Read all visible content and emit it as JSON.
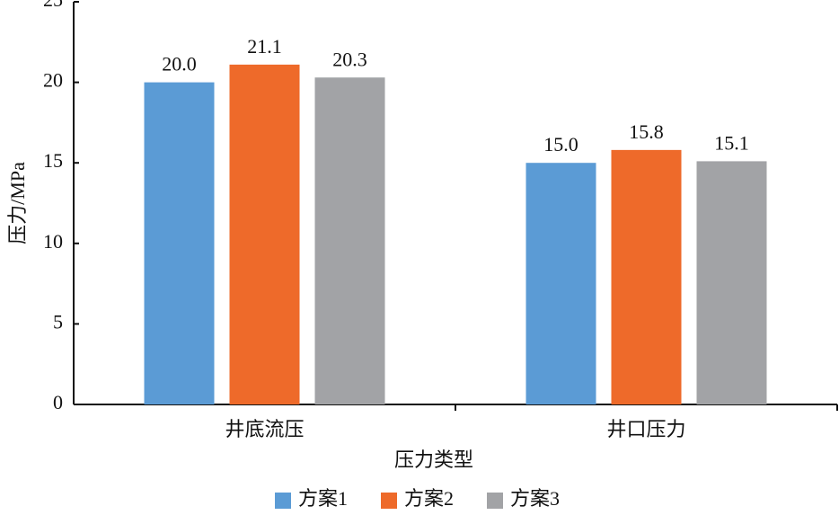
{
  "chart_data": {
    "type": "bar",
    "xlabel": "压力类型",
    "ylabel": "压力/MPa",
    "categories": [
      "井底流压",
      "井口压力"
    ],
    "series": [
      {
        "name": "方案1",
        "color": "#5b9bd5",
        "values": [
          20.0,
          15.0
        ],
        "value_labels": [
          "20.0",
          "15.0"
        ]
      },
      {
        "name": "方案2",
        "color": "#ee6a2a",
        "values": [
          21.1,
          15.8
        ],
        "value_labels": [
          "21.1",
          "15.8"
        ]
      },
      {
        "name": "方案3",
        "color": "#a2a3a6",
        "values": [
          20.3,
          15.1
        ],
        "value_labels": [
          "20.3",
          "15.1"
        ]
      }
    ],
    "ylim": [
      0,
      25
    ],
    "yticks": [
      0,
      5,
      10,
      15,
      20,
      25
    ],
    "grid": false,
    "legend": "bottom"
  }
}
